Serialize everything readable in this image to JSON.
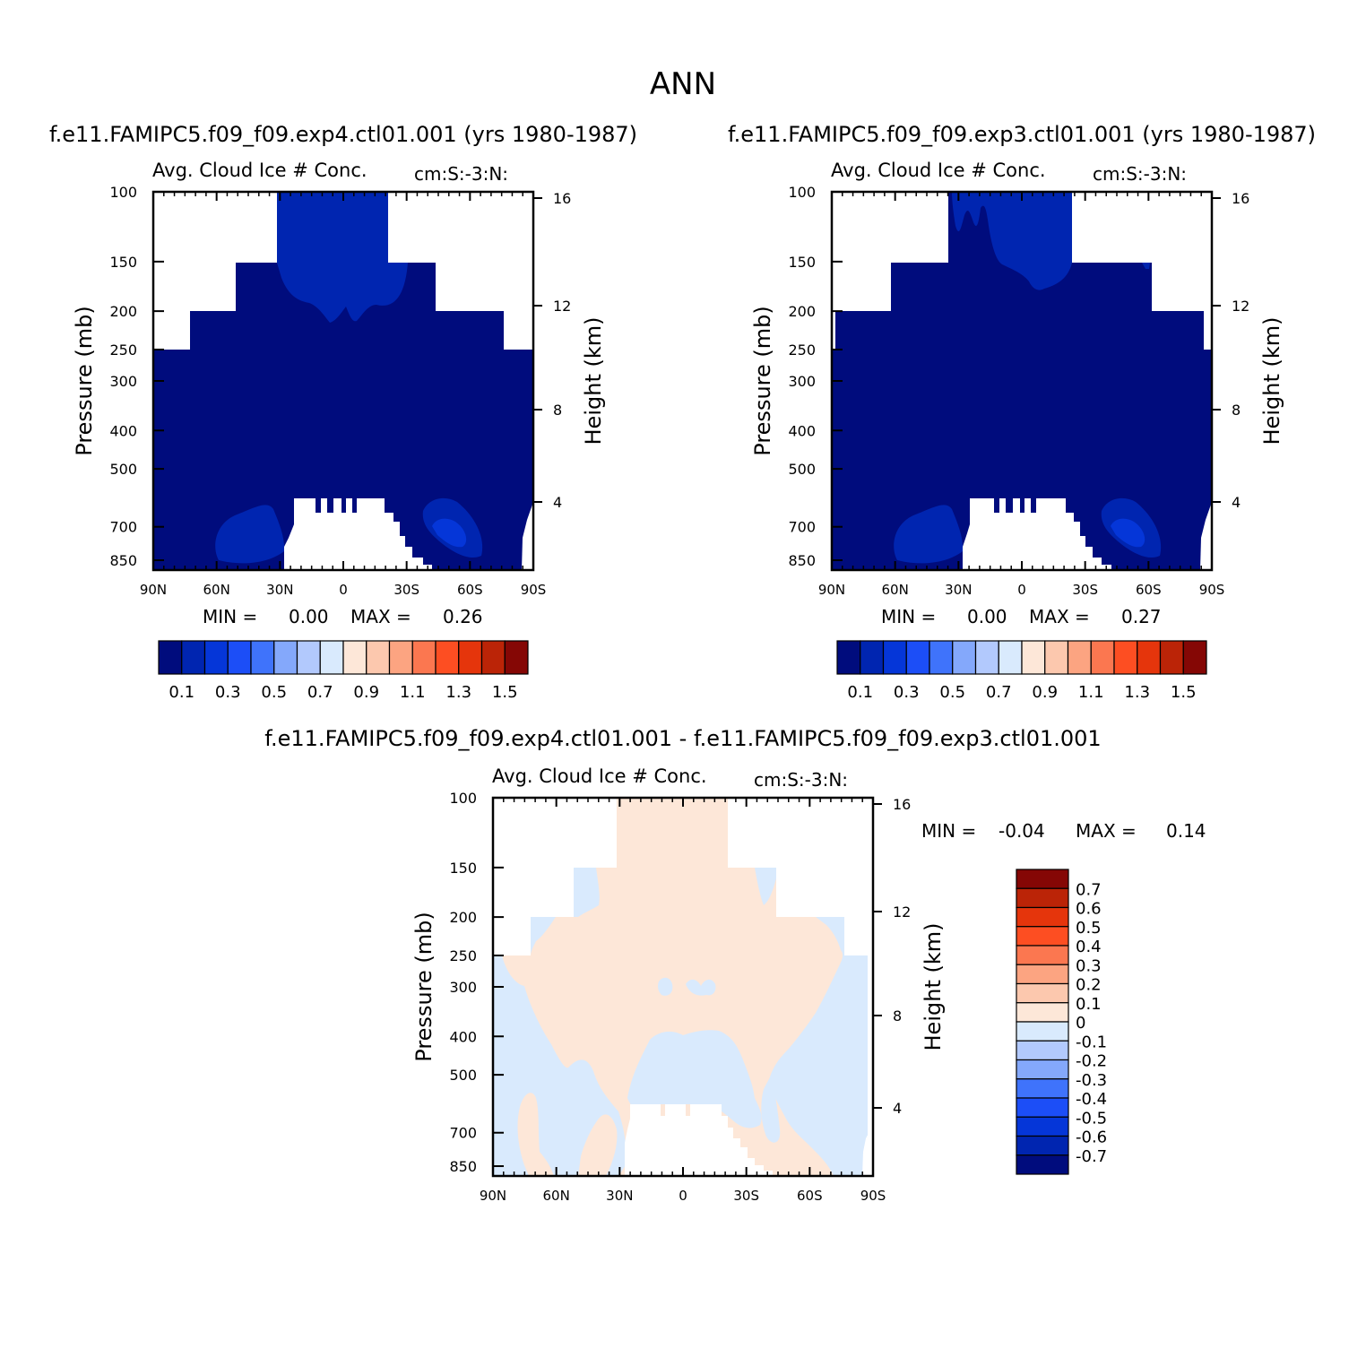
{
  "figure": {
    "title": "ANN"
  },
  "chart_data": [
    {
      "type": "heatmap",
      "case_title": "f.e11.FAMIPC5.f09_f09.exp4.ctl01.001 (yrs 1980-1987)",
      "title": "Avg. Cloud Ice # Conc.",
      "units": "cm:S:-3:N:",
      "ylabel": "Pressure (mb)",
      "y2label": "Height (km)",
      "xticks": [
        "90N",
        "60N",
        "30N",
        "0",
        "30S",
        "60S",
        "90S"
      ],
      "yticks": [
        "100",
        "150",
        "200",
        "250",
        "300",
        "400",
        "500",
        "700",
        "850"
      ],
      "y2ticks": [
        "16",
        "12",
        "8",
        "4"
      ],
      "min_label": "MIN =",
      "min_value": "0.00",
      "max_label": "MAX =",
      "max_value": "0.26",
      "colorbar": {
        "orientation": "horizontal",
        "colors": [
          "#000c7d",
          "#0025b0",
          "#0536d8",
          "#1c4ef7",
          "#3f73fb",
          "#84a8fb",
          "#b2c9fd",
          "#d9eafd",
          "#fde7d8",
          "#fcc8ae",
          "#fca481",
          "#fb7750",
          "#fd4e22",
          "#e5350c",
          "#bb2407",
          "#850705"
        ],
        "labels": [
          "0.1",
          "0.3",
          "0.5",
          "0.7",
          "0.9",
          "1.1",
          "1.3",
          "1.5"
        ]
      }
    },
    {
      "type": "heatmap",
      "case_title": "f.e11.FAMIPC5.f09_f09.exp3.ctl01.001 (yrs 1980-1987)",
      "title": "Avg. Cloud Ice # Conc.",
      "units": "cm:S:-3:N:",
      "ylabel": "Pressure (mb)",
      "y2label": "Height (km)",
      "xticks": [
        "90N",
        "60N",
        "30N",
        "0",
        "30S",
        "60S",
        "90S"
      ],
      "yticks": [
        "100",
        "150",
        "200",
        "250",
        "300",
        "400",
        "500",
        "700",
        "850"
      ],
      "y2ticks": [
        "16",
        "12",
        "8",
        "4"
      ],
      "min_label": "MIN =",
      "min_value": "0.00",
      "max_label": "MAX =",
      "max_value": "0.27",
      "colorbar": {
        "orientation": "horizontal",
        "colors": [
          "#000c7d",
          "#0025b0",
          "#0536d8",
          "#1c4ef7",
          "#3f73fb",
          "#84a8fb",
          "#b2c9fd",
          "#d9eafd",
          "#fde7d8",
          "#fcc8ae",
          "#fca481",
          "#fb7750",
          "#fd4e22",
          "#e5350c",
          "#bb2407",
          "#850705"
        ],
        "labels": [
          "0.1",
          "0.3",
          "0.5",
          "0.7",
          "0.9",
          "1.1",
          "1.3",
          "1.5"
        ]
      }
    },
    {
      "type": "heatmap",
      "case_title": "f.e11.FAMIPC5.f09_f09.exp4.ctl01.001 - f.e11.FAMIPC5.f09_f09.exp3.ctl01.001",
      "title": "Avg. Cloud Ice # Conc.",
      "units": "cm:S:-3:N:",
      "ylabel": "Pressure (mb)",
      "y2label": "Height (km)",
      "xticks": [
        "90N",
        "60N",
        "30N",
        "0",
        "30S",
        "60S",
        "90S"
      ],
      "yticks": [
        "100",
        "150",
        "200",
        "250",
        "300",
        "400",
        "500",
        "700",
        "850"
      ],
      "y2ticks": [
        "16",
        "12",
        "8",
        "4"
      ],
      "min_label": "MIN =",
      "min_value": "-0.04",
      "max_label": "MAX =",
      "max_value": "0.14",
      "colorbar": {
        "orientation": "vertical",
        "colors": [
          "#850705",
          "#bb2407",
          "#e5350c",
          "#fd4e22",
          "#fb7750",
          "#fca481",
          "#fcc8ae",
          "#fde7d8",
          "#d9eafd",
          "#b2c9fd",
          "#84a8fb",
          "#3f73fb",
          "#1c4ef7",
          "#0536d8",
          "#0025b0",
          "#000c7d"
        ],
        "labels": [
          "0.7",
          "0.6",
          "0.5",
          "0.4",
          "0.3",
          "0.2",
          "0.1",
          "0",
          "-0.1",
          "-0.2",
          "-0.3",
          "-0.4",
          "-0.5",
          "-0.6",
          "-0.7"
        ]
      }
    }
  ]
}
